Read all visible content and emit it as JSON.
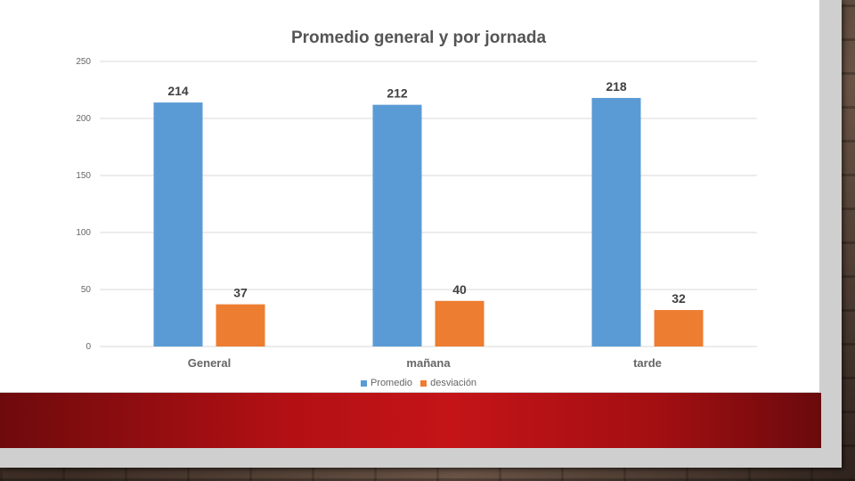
{
  "colors": {
    "promedio": "#5b9bd5",
    "desviacion": "#ed7d31",
    "grid": "#d9d9d9",
    "axis_text": "#666666",
    "label_text": "#404040"
  },
  "chart_data": {
    "type": "bar",
    "title": "Promedio general y por jornada",
    "categories": [
      "General",
      "mañana",
      "tarde"
    ],
    "series": [
      {
        "name": "Promedio",
        "values": [
          214,
          212,
          218
        ]
      },
      {
        "name": "desviación",
        "values": [
          37,
          40,
          32
        ]
      }
    ],
    "ylim": [
      0,
      250
    ],
    "yticks": [
      0,
      50,
      100,
      150,
      200,
      250
    ],
    "grid": true,
    "legend_position": "bottom",
    "data_labels": true
  }
}
